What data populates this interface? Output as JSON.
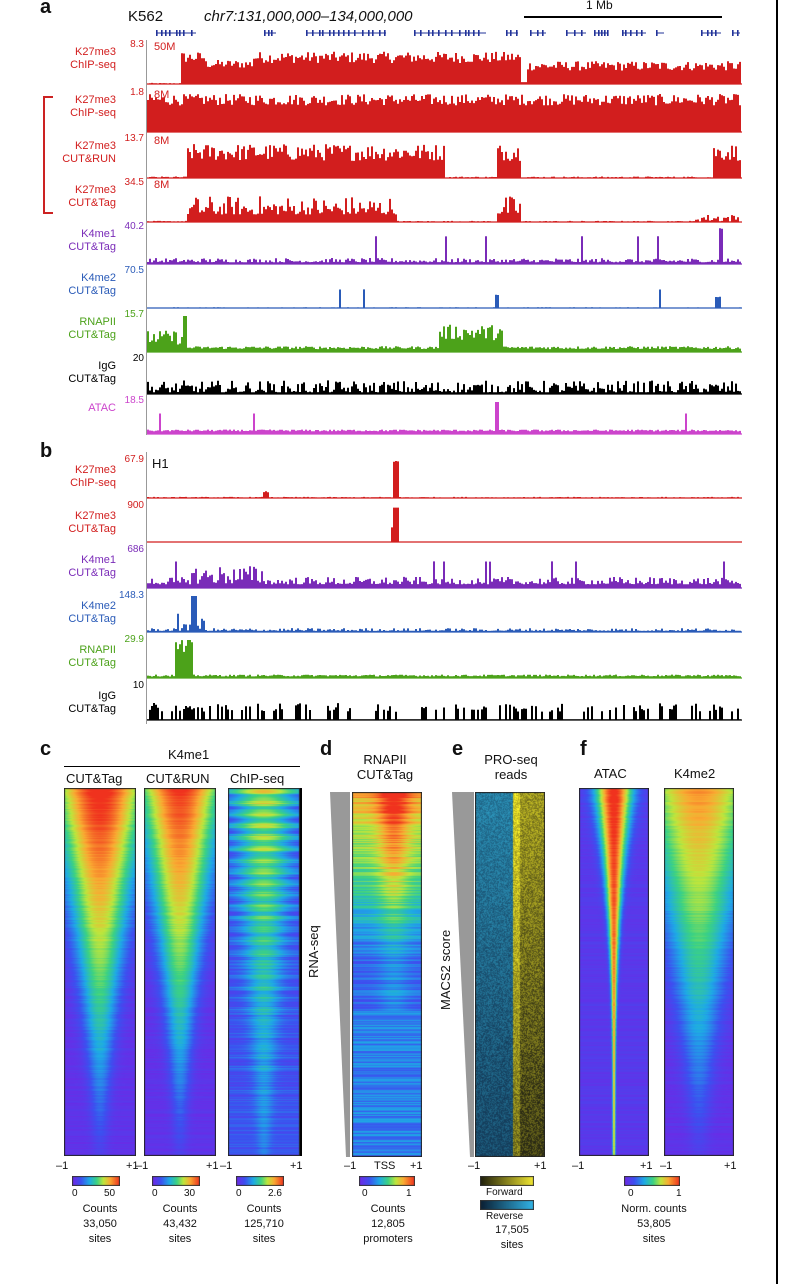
{
  "panelA": {
    "letter": "a",
    "cell": "K562",
    "region": "chr7:131,000,000–134,000,000",
    "scalebar": "1 Mb",
    "tracks": [
      {
        "label1": "K27me3",
        "label2": "ChIP-seq",
        "max": "8.3",
        "depth": "50M",
        "color": "#d21e1e",
        "profile": "k27a"
      },
      {
        "label1": "K27me3",
        "label2": "ChIP-seq",
        "max": "1.8",
        "depth": "8M",
        "color": "#d21e1e",
        "profile": "k27b"
      },
      {
        "label1": "K27me3",
        "label2": "CUT&RUN",
        "max": "13.7",
        "depth": "8M",
        "color": "#d21e1e",
        "profile": "k27c"
      },
      {
        "label1": "K27me3",
        "label2": "CUT&Tag",
        "max": "34.5",
        "depth": "8M",
        "color": "#d21e1e",
        "profile": "k27d"
      },
      {
        "label1": "K4me1",
        "label2": "CUT&Tag",
        "max": "40.2",
        "depth": "",
        "color": "#7a2bb8",
        "profile": "k4me1"
      },
      {
        "label1": "K4me2",
        "label2": "CUT&Tag",
        "max": "70.5",
        "depth": "",
        "color": "#2a5bb8",
        "profile": "k4me2"
      },
      {
        "label1": "RNAPII",
        "label2": "CUT&Tag",
        "max": "15.7",
        "depth": "",
        "color": "#4ca21a",
        "profile": "rnap"
      },
      {
        "label1": "IgG",
        "label2": "CUT&Tag",
        "max": "20",
        "depth": "",
        "color": "#000000",
        "profile": "igg"
      },
      {
        "label1": "ATAC",
        "label2": "",
        "max": "18.5",
        "depth": "",
        "color": "#cc44cc",
        "profile": "atac"
      }
    ],
    "track_colors": [
      "#d21e1e",
      "#d21e1e",
      "#d21e1e",
      "#d21e1e",
      "#7a2bb8",
      "#2a5bb8",
      "#4ca21a",
      "#000000",
      "#cc44cc"
    ]
  },
  "panelB": {
    "letter": "b",
    "cell": "H1",
    "tracks": [
      {
        "label1": "K27me3",
        "label2": "ChIP-seq",
        "max": "67.9",
        "color": "#d21e1e",
        "profile": "h1k27a"
      },
      {
        "label1": "K27me3",
        "label2": "CUT&Tag",
        "max": "900",
        "color": "#d21e1e",
        "profile": "h1k27b"
      },
      {
        "label1": "K4me1",
        "label2": "CUT&Tag",
        "max": "686",
        "color": "#7a2bb8",
        "profile": "h1k4me1"
      },
      {
        "label1": "K4me2",
        "label2": "CUT&Tag",
        "max": "148.3",
        "color": "#2a5bb8",
        "profile": "h1k4me2"
      },
      {
        "label1": "RNAPII",
        "label2": "CUT&Tag",
        "max": "29.9",
        "color": "#4ca21a",
        "profile": "h1rnap"
      },
      {
        "label1": "IgG",
        "label2": "CUT&Tag",
        "max": "10",
        "color": "#000000",
        "profile": "h1igg"
      }
    ]
  },
  "panelC": {
    "letter": "c",
    "mark": "K4me1",
    "heatmaps": [
      {
        "title": "CUT&Tag",
        "scale_min": "0",
        "scale_max": "50",
        "counts_label": "Counts",
        "sites": "33,050",
        "sites_label": "sites",
        "sharp": 1.0
      },
      {
        "title": "CUT&RUN",
        "scale_min": "0",
        "scale_max": "30",
        "counts_label": "Counts",
        "sites": "43,432",
        "sites_label": "sites",
        "sharp": 0.9
      },
      {
        "title": "ChIP-seq",
        "scale_min": "0",
        "scale_max": "2.6",
        "counts_label": "Counts",
        "sites": "125,710",
        "sites_label": "sites",
        "sharp": 0.45
      }
    ],
    "axis_left": "–1",
    "axis_right": "+1"
  },
  "panelD": {
    "letter": "d",
    "title1": "RNAPII",
    "title2": "CUT&Tag",
    "side_label": "RNA-seq",
    "axis_left": "–1",
    "axis_mid": "TSS",
    "axis_right": "+1",
    "scale_min": "0",
    "scale_max": "1",
    "counts_label": "Counts",
    "sites": "12,805",
    "sites_label": "promoters"
  },
  "panelE": {
    "letter": "e",
    "title1": "PRO-seq",
    "title2": "reads",
    "side_label": "MACS2 score",
    "axis_left": "–1",
    "axis_right": "+1",
    "legend_forward": "Forward",
    "legend_reverse": "Reverse",
    "sites": "17,505",
    "sites_label": "sites"
  },
  "panelF": {
    "letter": "f",
    "heatmaps": [
      {
        "title": "ATAC"
      },
      {
        "title": "K4me2"
      }
    ],
    "axis_left": "–1",
    "axis_right": "+1",
    "scale_min": "0",
    "scale_max": "1",
    "counts_label": "Norm. counts",
    "sites": "53,805",
    "sites_label": "sites"
  }
}
